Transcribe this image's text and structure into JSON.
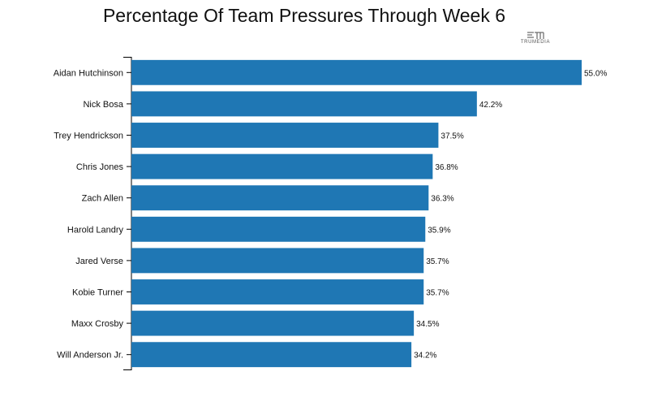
{
  "title": "Percentage Of Team Pressures Through Week 6",
  "logo": {
    "text": "TRUMEDIA",
    "icon": "trumedia-logo-icon"
  },
  "chart_data": {
    "type": "bar",
    "orientation": "horizontal",
    "title": "Percentage Of Team Pressures Through Week 6",
    "xlabel": "",
    "ylabel": "",
    "categories": [
      "Aidan Hutchinson",
      "Nick Bosa",
      "Trey Hendrickson",
      "Chris Jones",
      "Zach Allen",
      "Harold Landry",
      "Jared Verse",
      "Kobie Turner",
      "Maxx Crosby",
      "Will Anderson Jr."
    ],
    "values": [
      55.0,
      42.2,
      37.5,
      36.8,
      36.3,
      35.9,
      35.7,
      35.7,
      34.5,
      34.2
    ],
    "labels": [
      "55.0%",
      "42.2%",
      "37.5%",
      "36.8%",
      "36.3%",
      "35.9%",
      "35.7%",
      "35.7%",
      "34.5%",
      "34.2%"
    ],
    "xlim": [
      0,
      55
    ],
    "grid": false,
    "bar_color": "#1f77b4"
  }
}
